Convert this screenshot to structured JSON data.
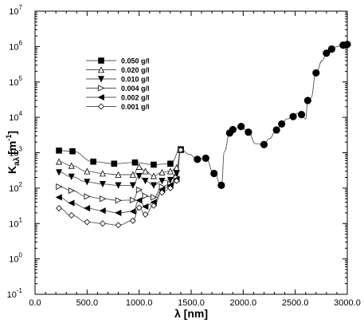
{
  "chart_data": {
    "type": "line",
    "ylabel_main": "K",
    "ylabel_sub": "aλ",
    "ylabel_unit": "[m",
    "ylabel_unit_exp": "-1",
    "ylabel_close": "]",
    "xlabel": "λ [nm]",
    "xlim": [
      0,
      3000
    ],
    "ylim": [
      0.1,
      10000000
    ],
    "yscale": "log",
    "x_ticks": [
      0,
      500,
      1000,
      1500,
      2000,
      2500,
      3000
    ],
    "x_tick_labels": [
      "0.0",
      "500.0",
      "1000.0",
      "1500.0",
      "2000.0",
      "2500.0",
      "3000.0"
    ],
    "y_ticks": [
      0.1,
      1,
      10,
      100,
      1000,
      10000,
      100000,
      1000000,
      10000000
    ],
    "y_tick_base": "10",
    "y_tick_exps": [
      "-1",
      "0",
      "1",
      "2",
      "3",
      "4",
      "5",
      "6",
      "7"
    ],
    "legend_position": "upper-left",
    "series": [
      {
        "name": "0.050 g/l",
        "marker": "square-filled",
        "x": [
          230,
          360,
          560,
          760,
          960,
          1140,
          1300,
          1400,
          1480,
          1560,
          1640,
          1720,
          1790,
          1820,
          1870,
          1900,
          1980,
          2050,
          2120,
          2200,
          2250,
          2320,
          2370,
          2420,
          2480,
          2520,
          2560,
          2600,
          2620,
          2650,
          2700,
          2760,
          2800,
          2850,
          2900,
          2960,
          3000
        ],
        "y": [
          1150,
          1100,
          560,
          490,
          530,
          460,
          490,
          1250,
          900,
          650,
          700,
          260,
          120,
          1100,
          3600,
          4500,
          5500,
          3800,
          1800,
          1700,
          2500,
          4400,
          6500,
          9000,
          10500,
          13000,
          12000,
          9000,
          30000,
          35000,
          180000,
          400000,
          650000,
          850000,
          1000000,
          1100000,
          1150000
        ]
      },
      {
        "name": "0.020 g/l",
        "marker": "triangle-up-open",
        "x": [
          230,
          350,
          500,
          650,
          800,
          940,
          1000,
          1060,
          1140,
          1220,
          1300,
          1360,
          1400
        ],
        "y": [
          560,
          430,
          300,
          260,
          240,
          240,
          400,
          300,
          220,
          280,
          300,
          380,
          1200
        ]
      },
      {
        "name": "0.010 g/l",
        "marker": "triangle-down-filled",
        "x": [
          230,
          350,
          500,
          650,
          800,
          940,
          1000,
          1060,
          1140,
          1220,
          1300,
          1360,
          1400
        ],
        "y": [
          280,
          210,
          150,
          130,
          120,
          120,
          220,
          160,
          120,
          160,
          170,
          260,
          1200
        ]
      },
      {
        "name": "0.004 g/l",
        "marker": "triangle-right-open",
        "x": [
          230,
          350,
          500,
          650,
          800,
          940,
          1000,
          1060,
          1140,
          1220,
          1300,
          1360,
          1400
        ],
        "y": [
          110,
          85,
          58,
          50,
          45,
          46,
          90,
          60,
          55,
          110,
          130,
          200,
          1200
        ]
      },
      {
        "name": "0.002 g/l",
        "marker": "triangle-left-filled",
        "x": [
          230,
          350,
          500,
          650,
          800,
          940,
          1000,
          1060,
          1140,
          1220,
          1300,
          1360,
          1400
        ],
        "y": [
          55,
          38,
          27,
          23,
          20,
          22,
          45,
          30,
          40,
          90,
          120,
          180,
          1200
        ]
      },
      {
        "name": "0.001 g/l",
        "marker": "diamond-open",
        "x": [
          230,
          350,
          500,
          650,
          800,
          940,
          1000,
          1060,
          1140,
          1220,
          1300,
          1360,
          1400
        ],
        "y": [
          27,
          17,
          11,
          10,
          9,
          12,
          28,
          18,
          32,
          75,
          100,
          160,
          1200
        ]
      }
    ]
  }
}
